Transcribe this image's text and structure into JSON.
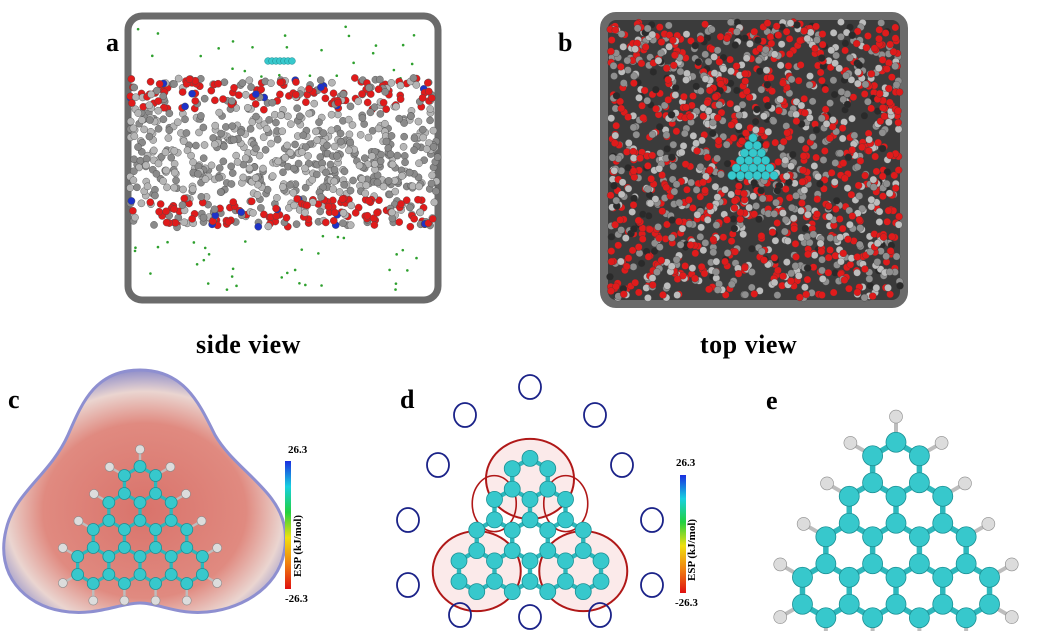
{
  "panels": {
    "a": {
      "label": "a",
      "caption": "side view"
    },
    "b": {
      "label": "b",
      "caption": "top view"
    },
    "c": {
      "label": "c",
      "colorbar": {
        "max": "26.3",
        "min": "-26.3",
        "axis": "ESP (kJ/mol)"
      }
    },
    "d": {
      "label": "d",
      "colorbar": {
        "max": "26.3",
        "min": "-26.3",
        "axis": "ESP (kJ/mol)"
      }
    },
    "e": {
      "label": "e"
    }
  },
  "colors": {
    "carbon": "#37c8cc",
    "hydrogen": "#dcdcdc",
    "oxygen": "#e01b1b",
    "lipid_tail": "#9e9e9e",
    "nitrogen": "#1e32c8",
    "positive_contour": "#b01818",
    "negative_contour": "#1a2288"
  }
}
